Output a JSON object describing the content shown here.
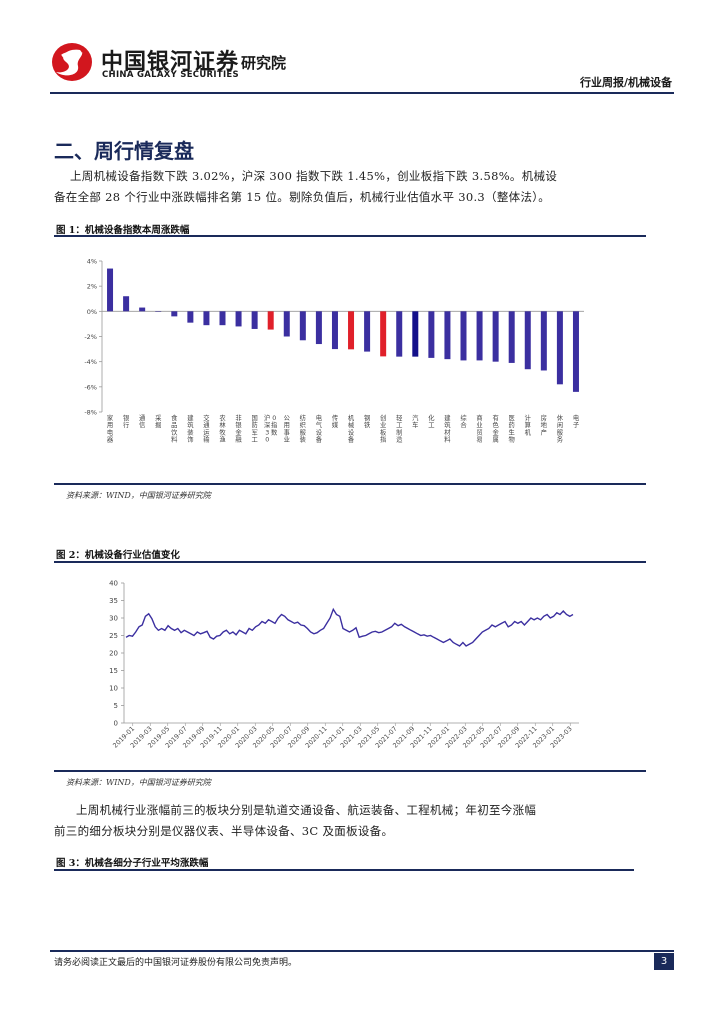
{
  "header": {
    "company_cn": "中国银河证券",
    "company_en": "CHINA GALAXY SECURITIES",
    "institute": "研究院",
    "report_type": "行业周报/机械设备"
  },
  "section": {
    "title": "二、周行情复盘",
    "para1_line1": "上周机械设备指数下跌 3.02%，沪深 300 指数下跌 1.45%，创业板指下跌 3.58%。机械设",
    "para1_line2": "备在全部 28 个行业中涨跌幅排名第 15 位。剔除负值后，机械行业估值水平 30.3（整体法）。",
    "para2_line1": "上周机械行业涨幅前三的板块分别是轨道交通设备、航运装备、工程机械；年初至今涨幅",
    "para2_line2": "前三的细分板块分别是仪器仪表、半导体设备、3C 及面板设备。"
  },
  "figures": {
    "fig1_title": "图 1：机械设备指数本周涨跌幅",
    "fig1_source": "资料来源：WIND，中国银河证券研究院",
    "fig2_title": "图 2：机械设备行业估值变化",
    "fig2_source": "资料来源：WIND，中国银河证券研究院",
    "fig3_title": "图 3：机械各细分子行业平均涨跌幅"
  },
  "footer": {
    "disclaimer": "请务必阅读正文最后的中国银河证券股份有限公司免责声明。",
    "page_number": "3"
  },
  "colors": {
    "bar_default": "#3b2fa0",
    "bar_highlight": "#e0202a",
    "line": "#3b2fa0",
    "rule": "#1a2a5a",
    "logo_red": "#d2161e"
  },
  "chart_data": [
    {
      "type": "bar",
      "categories": [
        "家用电器",
        "银行",
        "通信",
        "采掘",
        "食品饮料",
        "建筑装饰",
        "交通运输",
        "农林牧渔",
        "非银金融",
        "国防军工",
        "沪深300指数",
        "公用事业",
        "纺织服装",
        "电气设备",
        "传媒",
        "机械设备",
        "钢铁",
        "创业板指",
        "轻工制造",
        "汽车",
        "化工",
        "建筑材料",
        "综合",
        "商业贸易",
        "有色金属",
        "医药生物",
        "计算机",
        "房地产",
        "休闲服务",
        "电子"
      ],
      "values": [
        3.4,
        1.2,
        0.3,
        0.0,
        -0.4,
        -0.9,
        -1.1,
        -1.1,
        -1.2,
        -1.4,
        -1.45,
        -2.0,
        -2.3,
        -2.6,
        -3.0,
        -3.02,
        -3.2,
        -3.58,
        -3.6,
        -3.6,
        -3.7,
        -3.8,
        -3.9,
        -3.9,
        -4.0,
        -4.1,
        -4.6,
        -4.7,
        -5.8,
        -6.4
      ],
      "highlight": [
        "沪深300指数",
        "机械设备",
        "创业板指"
      ],
      "highlight_dark": [
        "汽车"
      ],
      "y_ticks": [
        "4%",
        "2%",
        "0%",
        "-2%",
        "-4%",
        "-6%",
        "-8%"
      ],
      "ylim": [
        -8,
        4
      ]
    },
    {
      "type": "line",
      "x_ticks": [
        "2019-01",
        "2019-03",
        "2019-05",
        "2019-07",
        "2019-09",
        "2019-11",
        "2020-01",
        "2020-03",
        "2020-05",
        "2020-07",
        "2020-09",
        "2020-11",
        "2021-01",
        "2021-03",
        "2021-05",
        "2021-07",
        "2021-09",
        "2021-11",
        "2022-01",
        "2022-03",
        "2022-05",
        "2022-07",
        "2022-09",
        "2022-11",
        "2023-01",
        "2023-03"
      ],
      "y_ticks": [
        "40",
        "35",
        "30",
        "25",
        "20",
        "15",
        "10",
        "5",
        "0"
      ],
      "ylim": [
        0,
        40
      ],
      "values": [
        24.5,
        25.0,
        24.8,
        26.0,
        27.5,
        28.0,
        30.5,
        31.2,
        29.8,
        27.5,
        26.5,
        27.0,
        26.5,
        27.8,
        27.0,
        26.5,
        27.0,
        25.8,
        26.5,
        26.0,
        25.5,
        25.0,
        26.0,
        25.5,
        25.8,
        26.2,
        24.5,
        24.0,
        24.8,
        25.0,
        26.0,
        26.5,
        25.5,
        26.0,
        25.2,
        26.5,
        26.0,
        25.5,
        27.0,
        26.5,
        27.5,
        28.0,
        29.0,
        28.5,
        29.5,
        29.0,
        28.5,
        30.0,
        31.0,
        30.5,
        29.5,
        29.0,
        28.5,
        28.8,
        28.0,
        27.8,
        27.0,
        26.0,
        25.5,
        25.8,
        26.5,
        27.0,
        28.5,
        30.0,
        32.5,
        31.0,
        30.5,
        27.0,
        26.5,
        26.0,
        26.5,
        27.2,
        24.5,
        24.8,
        25.0,
        25.5,
        26.0,
        26.2,
        25.8,
        26.0,
        26.5,
        27.0,
        27.5,
        28.5,
        27.8,
        28.2,
        27.5,
        27.0,
        26.5,
        26.0,
        25.5,
        25.0,
        25.2,
        24.8,
        25.0,
        24.5,
        24.0,
        23.5,
        23.0,
        23.5,
        24.0,
        23.0,
        22.5,
        22.0,
        23.0,
        22.0,
        22.5,
        23.0,
        24.0,
        25.0,
        26.0,
        26.5,
        27.0,
        28.0,
        27.5,
        28.0,
        28.5,
        29.0,
        27.5,
        28.0,
        29.0,
        28.5,
        29.0,
        28.0,
        29.0,
        30.0,
        29.5,
        30.0,
        29.5,
        30.5,
        31.0,
        30.0,
        30.5,
        31.5,
        31.0,
        32.0,
        31.0,
        30.5,
        31.0
      ]
    }
  ]
}
